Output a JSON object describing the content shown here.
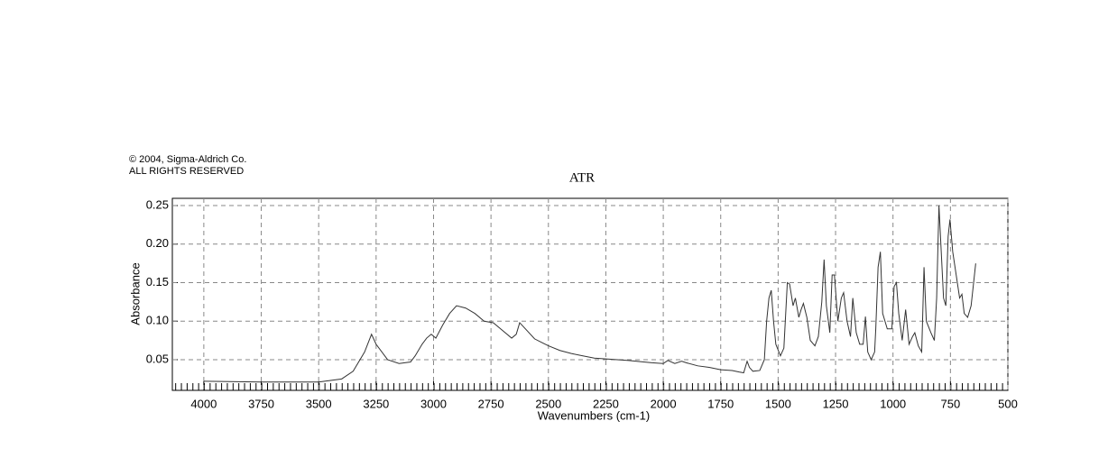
{
  "chart_data": {
    "type": "line",
    "copyright": [
      "© 2004, Sigma-Aldrich Co.",
      "ALL RIGHTS RESERVED"
    ],
    "title": "ATR",
    "x_label": "Wavenumbers (cm-1)",
    "y_label": "Absorbance",
    "color": "#333333",
    "grid": true,
    "xlim": [
      4137,
      500
    ],
    "ylim": [
      0.0102,
      0.2594
    ],
    "xticks": [
      4000,
      3750,
      3500,
      3250,
      3000,
      2750,
      2500,
      2250,
      2000,
      1750,
      1500,
      1250,
      1000,
      750,
      500
    ],
    "yticks": [
      0.05,
      {
        "value": 0.1,
        "label": "0.10"
      },
      0.15,
      {
        "value": 0.2,
        "label": "0.20"
      },
      0.25
    ],
    "x": [
      4000,
      3750,
      3500,
      3400,
      3350,
      3300,
      3270,
      3250,
      3200,
      3150,
      3100,
      3080,
      3050,
      3030,
      3010,
      2990,
      2960,
      2930,
      2900,
      2860,
      2820,
      2780,
      2740,
      2700,
      2660,
      2640,
      2625,
      2600,
      2560,
      2500,
      2450,
      2400,
      2350,
      2300,
      2250,
      2150,
      2050,
      2000,
      1980,
      1950,
      1920,
      1900,
      1850,
      1800,
      1750,
      1700,
      1670,
      1650,
      1635,
      1625,
      1610,
      1580,
      1560,
      1550,
      1540,
      1530,
      1520,
      1510,
      1490,
      1475,
      1460,
      1450,
      1435,
      1425,
      1410,
      1400,
      1390,
      1375,
      1360,
      1340,
      1325,
      1310,
      1300,
      1290,
      1275,
      1265,
      1255,
      1240,
      1225,
      1215,
      1200,
      1185,
      1175,
      1160,
      1145,
      1130,
      1120,
      1110,
      1095,
      1080,
      1075,
      1065,
      1055,
      1045,
      1025,
      1005,
      995,
      985,
      975,
      960,
      945,
      930,
      915,
      905,
      890,
      875,
      865,
      855,
      835,
      820,
      810,
      800,
      790,
      780,
      770,
      760,
      752,
      740,
      725,
      710,
      700,
      690,
      675,
      660,
      640
    ],
    "values": [
      0.022,
      0.021,
      0.021,
      0.025,
      0.035,
      0.06,
      0.083,
      0.07,
      0.05,
      0.045,
      0.047,
      0.055,
      0.07,
      0.078,
      0.083,
      0.078,
      0.095,
      0.11,
      0.12,
      0.117,
      0.11,
      0.1,
      0.098,
      0.088,
      0.078,
      0.083,
      0.098,
      0.09,
      0.077,
      0.068,
      0.062,
      0.058,
      0.055,
      0.052,
      0.051,
      0.049,
      0.046,
      0.045,
      0.049,
      0.045,
      0.048,
      0.046,
      0.042,
      0.04,
      0.037,
      0.036,
      0.034,
      0.033,
      0.048,
      0.04,
      0.035,
      0.036,
      0.05,
      0.1,
      0.13,
      0.14,
      0.1,
      0.07,
      0.055,
      0.065,
      0.15,
      0.148,
      0.12,
      0.13,
      0.105,
      0.115,
      0.123,
      0.105,
      0.075,
      0.068,
      0.08,
      0.125,
      0.18,
      0.12,
      0.085,
      0.16,
      0.16,
      0.1,
      0.13,
      0.137,
      0.1,
      0.08,
      0.13,
      0.085,
      0.07,
      0.07,
      0.106,
      0.06,
      0.05,
      0.06,
      0.09,
      0.17,
      0.19,
      0.11,
      0.09,
      0.09,
      0.145,
      0.15,
      0.11,
      0.075,
      0.115,
      0.07,
      0.08,
      0.085,
      0.068,
      0.06,
      0.17,
      0.1,
      0.085,
      0.075,
      0.13,
      0.25,
      0.19,
      0.13,
      0.12,
      0.21,
      0.232,
      0.19,
      0.16,
      0.13,
      0.135,
      0.11,
      0.105,
      0.12,
      0.175
    ]
  }
}
